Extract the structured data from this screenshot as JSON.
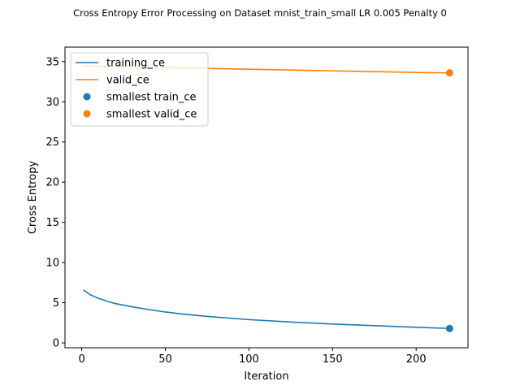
{
  "chart_data": {
    "type": "line",
    "title": "Cross Entropy Error Processing on Dataset mnist_train_small LR 0.005 Penalty 0",
    "xlabel": "Iteration",
    "ylabel": "Cross Entropy",
    "xlim": [
      -10,
      231
    ],
    "ylim": [
      -0.6,
      36.8
    ],
    "xticks": [
      0,
      50,
      100,
      150,
      200
    ],
    "yticks": [
      0,
      5,
      10,
      15,
      20,
      25,
      30,
      35
    ],
    "grid": false,
    "legend_position": "top-left",
    "series": [
      {
        "name": "training_ce",
        "kind": "line",
        "color": "#1f77b4",
        "x": [
          1,
          5,
          10,
          15,
          20,
          30,
          40,
          50,
          60,
          75,
          100,
          125,
          150,
          175,
          200,
          220
        ],
        "y": [
          6.6,
          6.0,
          5.55,
          5.2,
          4.9,
          4.5,
          4.15,
          3.85,
          3.6,
          3.3,
          2.9,
          2.6,
          2.35,
          2.15,
          1.95,
          1.8
        ]
      },
      {
        "name": "valid_ce",
        "kind": "line",
        "color": "#ff7f0e",
        "x": [
          1,
          25,
          50,
          75,
          100,
          125,
          150,
          175,
          200,
          220
        ],
        "y": [
          34.45,
          34.35,
          34.25,
          34.15,
          34.05,
          33.95,
          33.85,
          33.75,
          33.65,
          33.6
        ]
      },
      {
        "name": "smallest train_ce",
        "kind": "scatter",
        "color": "#1f77b4",
        "x": [
          220
        ],
        "y": [
          1.8
        ]
      },
      {
        "name": "smallest valid_ce",
        "kind": "scatter",
        "color": "#ff7f0e",
        "x": [
          220
        ],
        "y": [
          33.6
        ]
      }
    ]
  }
}
